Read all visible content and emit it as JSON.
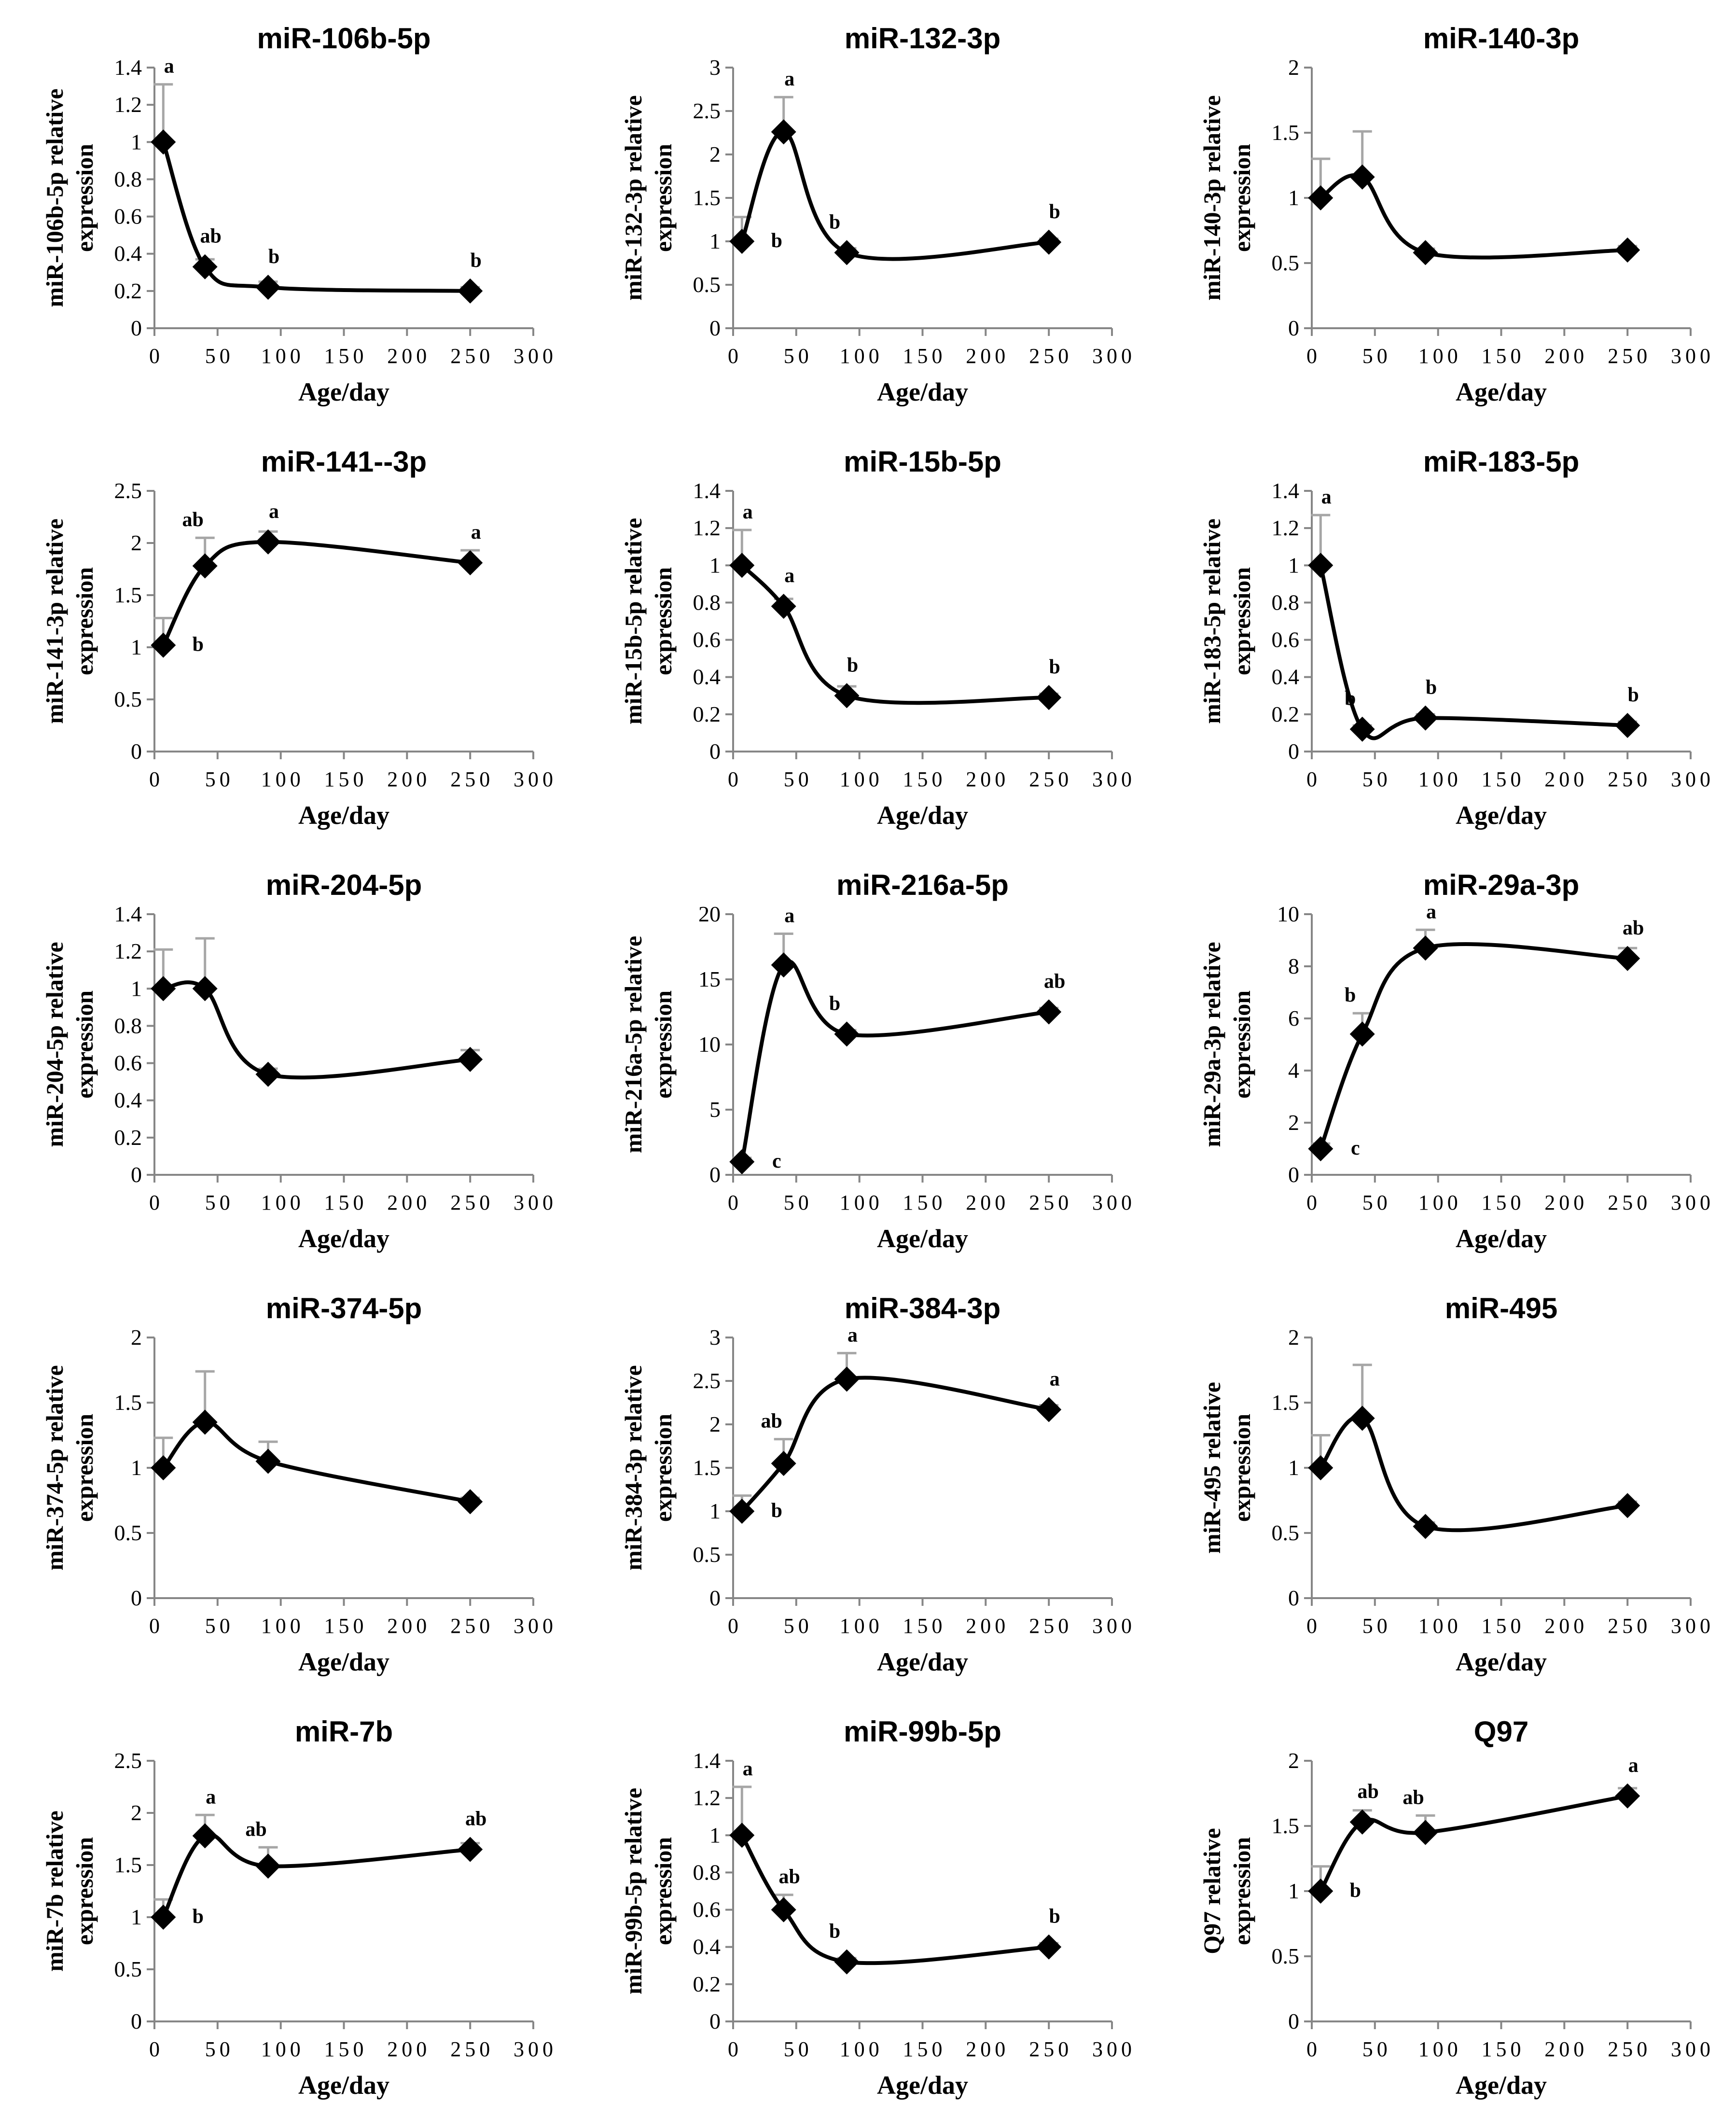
{
  "chart_data": [
    {
      "type": "line",
      "title": "miR-106b-5p",
      "ylabel": [
        "miR-106b-5p relative",
        "expression"
      ],
      "xlabel": "Age/day",
      "xlim": [
        0,
        300
      ],
      "xticks": [
        "0",
        "50",
        "100",
        "150",
        "200",
        "250",
        "300"
      ],
      "ylim": [
        0,
        1.4
      ],
      "yticks": [
        "0",
        "0.2",
        "0.4",
        "0.6",
        "0.8",
        "1",
        "1.2",
        "1.4"
      ],
      "x": [
        7,
        40,
        90,
        250
      ],
      "y": [
        1.0,
        0.33,
        0.22,
        0.2
      ],
      "error_upper": [
        0.31,
        0.04,
        0.03,
        0.02
      ],
      "letters": [
        "a",
        "ab",
        "b",
        "b"
      ]
    },
    {
      "type": "line",
      "title": "miR-132-3p",
      "ylabel": [
        "miR-132-3p relative",
        "expression"
      ],
      "xlabel": "Age/day",
      "xlim": [
        0,
        300
      ],
      "xticks": [
        "0",
        "50",
        "100",
        "150",
        "200",
        "250",
        "300"
      ],
      "ylim": [
        0,
        3
      ],
      "yticks": [
        "0",
        "0.5",
        "1",
        "1.5",
        "2",
        "2.5",
        "3"
      ],
      "x": [
        7,
        40,
        90,
        250
      ],
      "y": [
        1.0,
        2.26,
        0.87,
        0.99
      ],
      "error_upper": [
        0.28,
        0.4,
        0.05,
        0.04
      ],
      "letters": [
        "b",
        "a",
        "b",
        "b"
      ]
    },
    {
      "type": "line",
      "title": "miR-140-3p",
      "ylabel": [
        "miR-140-3p relative",
        "expression"
      ],
      "xlabel": "Age/day",
      "xlim": [
        0,
        300
      ],
      "xticks": [
        "0",
        "50",
        "100",
        "150",
        "200",
        "250",
        "300"
      ],
      "ylim": [
        0,
        2
      ],
      "yticks": [
        "0",
        "0.5",
        "1",
        "1.5",
        "2"
      ],
      "x": [
        7,
        40,
        90,
        250
      ],
      "y": [
        1.0,
        1.16,
        0.58,
        0.6
      ],
      "error_upper": [
        0.3,
        0.35,
        0.03,
        0.03
      ],
      "letters": []
    },
    {
      "type": "line",
      "title": "miR-141--3p",
      "ylabel": [
        "miR-141-3p relative",
        "expression"
      ],
      "xlabel": "Age/day",
      "xlim": [
        0,
        300
      ],
      "xticks": [
        "0",
        "50",
        "100",
        "150",
        "200",
        "250",
        "300"
      ],
      "ylim": [
        0,
        2.5
      ],
      "yticks": [
        "0",
        "0.5",
        "1",
        "1.5",
        "2",
        "2.5"
      ],
      "x": [
        7,
        40,
        90,
        250
      ],
      "y": [
        1.02,
        1.78,
        2.01,
        1.81
      ],
      "error_upper": [
        0.26,
        0.27,
        0.1,
        0.12
      ],
      "letters": [
        "b",
        "ab",
        "a",
        "a"
      ]
    },
    {
      "type": "line",
      "title": "miR-15b-5p",
      "ylabel": [
        "miR-15b-5p relative",
        "expression"
      ],
      "xlabel": "Age/day",
      "xlim": [
        0,
        300
      ],
      "xticks": [
        "0",
        "50",
        "100",
        "150",
        "200",
        "250",
        "300"
      ],
      "ylim": [
        0,
        1.4
      ],
      "yticks": [
        "0",
        "0.2",
        "0.4",
        "0.6",
        "0.8",
        "1",
        "1.2",
        "1.4"
      ],
      "x": [
        7,
        40,
        90,
        250
      ],
      "y": [
        1.0,
        0.78,
        0.3,
        0.29
      ],
      "error_upper": [
        0.19,
        0.04,
        0.05,
        0.02
      ],
      "letters": [
        "a",
        "a",
        "b",
        "b"
      ]
    },
    {
      "type": "line",
      "title": "miR-183-5p",
      "ylabel": [
        "miR-183-5p relative",
        "expression"
      ],
      "xlabel": "Age/day",
      "xlim": [
        0,
        300
      ],
      "xticks": [
        "0",
        "50",
        "100",
        "150",
        "200",
        "250",
        "300"
      ],
      "ylim": [
        0,
        1.4
      ],
      "yticks": [
        "0",
        "0.2",
        "0.4",
        "0.6",
        "0.8",
        "1",
        "1.2",
        "1.4"
      ],
      "x": [
        7,
        40,
        90,
        250
      ],
      "y": [
        1.0,
        0.12,
        0.18,
        0.14
      ],
      "error_upper": [
        0.27,
        0.02,
        0.02,
        0.02
      ],
      "letters": [
        "a",
        "b",
        "b",
        "b"
      ]
    },
    {
      "type": "line",
      "title": "miR-204-5p",
      "ylabel": [
        "miR-204-5p relative",
        "expression"
      ],
      "xlabel": "Age/day",
      "xlim": [
        0,
        300
      ],
      "xticks": [
        "0",
        "50",
        "100",
        "150",
        "200",
        "250",
        "300"
      ],
      "ylim": [
        0,
        1.4
      ],
      "yticks": [
        "0",
        "0.2",
        "0.4",
        "0.6",
        "0.8",
        "1",
        "1.2",
        "1.4"
      ],
      "x": [
        7,
        40,
        90,
        250
      ],
      "y": [
        1.0,
        1.0,
        0.54,
        0.62
      ],
      "error_upper": [
        0.21,
        0.27,
        0.03,
        0.05
      ],
      "letters": []
    },
    {
      "type": "line",
      "title": "miR-216a-5p",
      "ylabel": [
        "miR-216a-5p relative",
        "expression"
      ],
      "xlabel": "Age/day",
      "xlim": [
        0,
        300
      ],
      "xticks": [
        "0",
        "50",
        "100",
        "150",
        "200",
        "250",
        "300"
      ],
      "ylim": [
        0,
        20
      ],
      "yticks": [
        "0",
        "5",
        "10",
        "15",
        "20"
      ],
      "x": [
        7,
        40,
        90,
        250
      ],
      "y": [
        1.0,
        16.1,
        10.8,
        12.5
      ],
      "error_upper": [
        0.3,
        2.4,
        0.3,
        0.3
      ],
      "letters": [
        "c",
        "a",
        "b",
        "ab"
      ]
    },
    {
      "type": "line",
      "title": "miR-29a-3p",
      "ylabel": [
        "miR-29a-3p relative",
        "expression"
      ],
      "xlabel": "Age/day",
      "xlim": [
        0,
        300
      ],
      "xticks": [
        "0",
        "50",
        "100",
        "150",
        "200",
        "250",
        "300"
      ],
      "ylim": [
        0,
        10
      ],
      "yticks": [
        "0",
        "2",
        "4",
        "6",
        "8",
        "10"
      ],
      "x": [
        7,
        40,
        90,
        250
      ],
      "y": [
        1.0,
        5.4,
        8.7,
        8.3
      ],
      "error_upper": [
        0.2,
        0.8,
        0.7,
        0.4
      ],
      "letters": [
        "c",
        "b",
        "a",
        "ab"
      ]
    },
    {
      "type": "line",
      "title": "miR-374-5p",
      "ylabel": [
        "miR-374-5p relative",
        "expression"
      ],
      "xlabel": "Age/day",
      "xlim": [
        0,
        300
      ],
      "xticks": [
        "0",
        "50",
        "100",
        "150",
        "200",
        "250",
        "300"
      ],
      "ylim": [
        0,
        2
      ],
      "yticks": [
        "0",
        "0.5",
        "1",
        "1.5",
        "2"
      ],
      "x": [
        7,
        40,
        90,
        250
      ],
      "y": [
        1.0,
        1.35,
        1.05,
        0.74
      ],
      "error_upper": [
        0.23,
        0.39,
        0.15,
        0.03
      ],
      "letters": []
    },
    {
      "type": "line",
      "title": "miR-384-3p",
      "ylabel": [
        "miR-384-3p relative",
        "expression"
      ],
      "xlabel": "Age/day",
      "xlim": [
        0,
        300
      ],
      "xticks": [
        "0",
        "50",
        "100",
        "150",
        "200",
        "250",
        "300"
      ],
      "ylim": [
        0,
        3
      ],
      "yticks": [
        "0",
        "0.5",
        "1",
        "1.5",
        "2",
        "2.5",
        "3"
      ],
      "x": [
        7,
        40,
        90,
        250
      ],
      "y": [
        1.0,
        1.55,
        2.52,
        2.17
      ],
      "error_upper": [
        0.18,
        0.28,
        0.3,
        0.05
      ],
      "letters": [
        "b",
        "ab",
        "a",
        "a"
      ]
    },
    {
      "type": "line",
      "title": "miR-495",
      "ylabel": [
        "miR-495 relative",
        "expression"
      ],
      "xlabel": "Age/day",
      "xlim": [
        0,
        300
      ],
      "xticks": [
        "0",
        "50",
        "100",
        "150",
        "200",
        "250",
        "300"
      ],
      "ylim": [
        0,
        2
      ],
      "yticks": [
        "0",
        "0.5",
        "1",
        "1.5",
        "2"
      ],
      "x": [
        7,
        40,
        90,
        250
      ],
      "y": [
        1.0,
        1.38,
        0.55,
        0.71
      ],
      "error_upper": [
        0.25,
        0.41,
        0.03,
        0.03
      ],
      "letters": []
    },
    {
      "type": "line",
      "title": "miR-7b",
      "ylabel": [
        "miR-7b relative",
        "expression"
      ],
      "xlabel": "Age/day",
      "xlim": [
        0,
        300
      ],
      "xticks": [
        "0",
        "50",
        "100",
        "150",
        "200",
        "250",
        "300"
      ],
      "ylim": [
        0,
        2.5
      ],
      "yticks": [
        "0",
        "0.5",
        "1",
        "1.5",
        "2",
        "2.5"
      ],
      "x": [
        7,
        40,
        90,
        250
      ],
      "y": [
        1.0,
        1.78,
        1.49,
        1.65
      ],
      "error_upper": [
        0.17,
        0.2,
        0.18,
        0.06
      ],
      "letters": [
        "b",
        "a",
        "ab",
        "ab"
      ]
    },
    {
      "type": "line",
      "title": "miR-99b-5p",
      "ylabel": [
        "miR-99b-5p relative",
        "expression"
      ],
      "xlabel": "Age/day",
      "xlim": [
        0,
        300
      ],
      "xticks": [
        "0",
        "50",
        "100",
        "150",
        "200",
        "250",
        "300"
      ],
      "ylim": [
        0,
        1.4
      ],
      "yticks": [
        "0",
        "0.2",
        "0.4",
        "0.6",
        "0.8",
        "1",
        "1.2",
        "1.4"
      ],
      "x": [
        7,
        40,
        90,
        250
      ],
      "y": [
        1.0,
        0.6,
        0.32,
        0.4
      ],
      "error_upper": [
        0.26,
        0.08,
        0.02,
        0.02
      ],
      "letters": [
        "a",
        "ab",
        "b",
        "b"
      ]
    },
    {
      "type": "line",
      "title": "Q97",
      "ylabel": [
        "Q97 relative",
        "expression"
      ],
      "xlabel": "Age/day",
      "xlim": [
        0,
        300
      ],
      "xticks": [
        "0",
        "50",
        "100",
        "150",
        "200",
        "250",
        "300"
      ],
      "ylim": [
        0,
        2
      ],
      "yticks": [
        "0",
        "0.5",
        "1",
        "1.5",
        "2"
      ],
      "x": [
        7,
        40,
        90,
        250
      ],
      "y": [
        1.0,
        1.53,
        1.45,
        1.73
      ],
      "error_upper": [
        0.19,
        0.09,
        0.13,
        0.06
      ],
      "letters": [
        "b",
        "ab",
        "ab",
        "a"
      ]
    }
  ]
}
